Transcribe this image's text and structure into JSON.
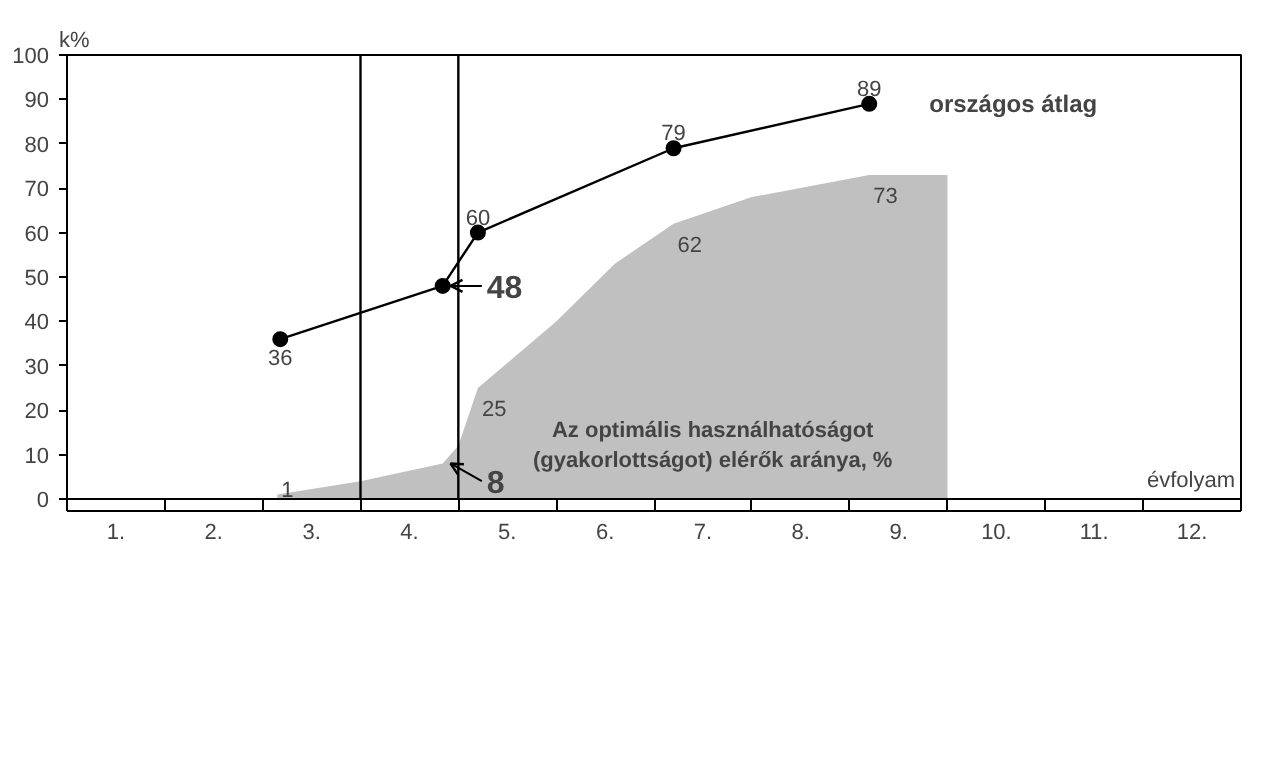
{
  "chart_data": {
    "type": "line",
    "ylabel": "k%",
    "xlabel": "évfolyam",
    "xlim": [
      0,
      12
    ],
    "xticks": [
      {
        "value": 0.5,
        "label": "1."
      },
      {
        "value": 1.5,
        "label": "2."
      },
      {
        "value": 2.5,
        "label": "3."
      },
      {
        "value": 3.5,
        "label": "4."
      },
      {
        "value": 4.5,
        "label": "5."
      },
      {
        "value": 5.5,
        "label": "6."
      },
      {
        "value": 6.5,
        "label": "7."
      },
      {
        "value": 7.5,
        "label": "8."
      },
      {
        "value": 8.5,
        "label": "9."
      },
      {
        "value": 9.5,
        "label": "10."
      },
      {
        "value": 10.5,
        "label": "11."
      },
      {
        "value": 11.5,
        "label": "12."
      },
      {
        "value": 0,
        "label": null
      },
      {
        "value": 1,
        "label": null
      },
      {
        "value": 2,
        "label": null
      },
      {
        "value": 3,
        "label": null
      },
      {
        "value": 4,
        "label": null
      },
      {
        "value": 5,
        "label": null
      },
      {
        "value": 6,
        "label": null
      },
      {
        "value": 7,
        "label": null
      },
      {
        "value": 8,
        "label": null
      },
      {
        "value": 9,
        "label": null
      },
      {
        "value": 10,
        "label": null
      },
      {
        "value": 11,
        "label": null
      },
      {
        "value": 12,
        "label": null
      }
    ],
    "ylim": [
      0,
      100
    ],
    "yticks": [
      0,
      10,
      20,
      30,
      40,
      50,
      60,
      70,
      80,
      90,
      100
    ],
    "series": [
      {
        "type": "area",
        "name": "Az optimális használhatóságot (gyakorlottságot) elérők aránya, %",
        "color": "#c0c0c0",
        "x": [
          2.15,
          3.0,
          3.84,
          4.0,
          4.2,
          5.0,
          5.6,
          6.2,
          7.0,
          8.2,
          9.0
        ],
        "values": [
          1,
          4,
          8,
          12,
          25,
          40,
          53,
          62,
          68,
          73,
          73
        ],
        "value_labels": [
          "1",
          null,
          null,
          null,
          "25",
          null,
          null,
          "62",
          null,
          "73",
          null
        ]
      },
      {
        "name": "országos átlag",
        "color": "#000000",
        "marker": "circle",
        "x": [
          2.18,
          3.84,
          4.2,
          6.2,
          8.2
        ],
        "values": [
          36,
          48,
          60,
          79,
          89
        ],
        "value_labels": [
          "36",
          null,
          "60",
          "79",
          "89"
        ]
      }
    ],
    "annotations": [
      {
        "text": "48",
        "x": 3.84,
        "y": 48
      },
      {
        "text": "8",
        "x": 3.84,
        "y": 8
      }
    ],
    "ref_lines": [
      {
        "axis": "x",
        "value": 3,
        "color": "#000000"
      },
      {
        "axis": "x",
        "value": 4,
        "color": "#000000"
      }
    ],
    "grid": false,
    "legend": false
  }
}
